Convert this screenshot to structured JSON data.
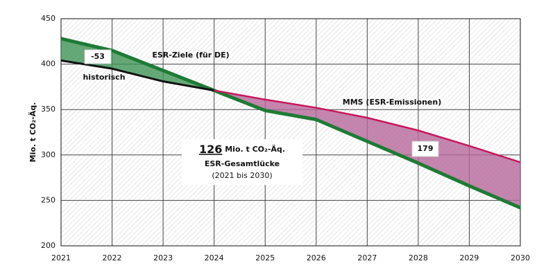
{
  "chart_data": {
    "type": "line",
    "ylabel": "Mio. t CO₂-Äq.",
    "x": [
      2021,
      2022,
      2023,
      2024,
      2025,
      2026,
      2027,
      2028,
      2029,
      2030
    ],
    "xlim": [
      2021,
      2030
    ],
    "xticks": [
      2021,
      2022,
      2023,
      2024,
      2025,
      2026,
      2027,
      2028,
      2029,
      2030
    ],
    "ylim": [
      200,
      450
    ],
    "yticks": [
      200,
      250,
      300,
      350,
      400,
      450
    ],
    "grid": true,
    "series": [
      {
        "name": "ESR-Ziele (für DE)",
        "color": "#1e7b34",
        "values": [
          428,
          415,
          393,
          371,
          349,
          339,
          315,
          291,
          266,
          242
        ]
      },
      {
        "name": "historisch",
        "color": "#111111",
        "values": [
          404,
          395,
          381,
          371,
          null,
          null,
          null,
          null,
          null,
          null
        ]
      },
      {
        "name": "MMS (ESR-Emissionen)",
        "color": "#c8175d",
        "values": [
          null,
          null,
          null,
          371,
          361,
          352,
          341,
          327,
          310,
          292
        ]
      }
    ],
    "annotations": [
      "-53",
      "179",
      "126",
      " Mio. t CO₂-Äq.",
      "ESR-Gesamtlücke",
      "(2021 bis 2030)"
    ]
  }
}
